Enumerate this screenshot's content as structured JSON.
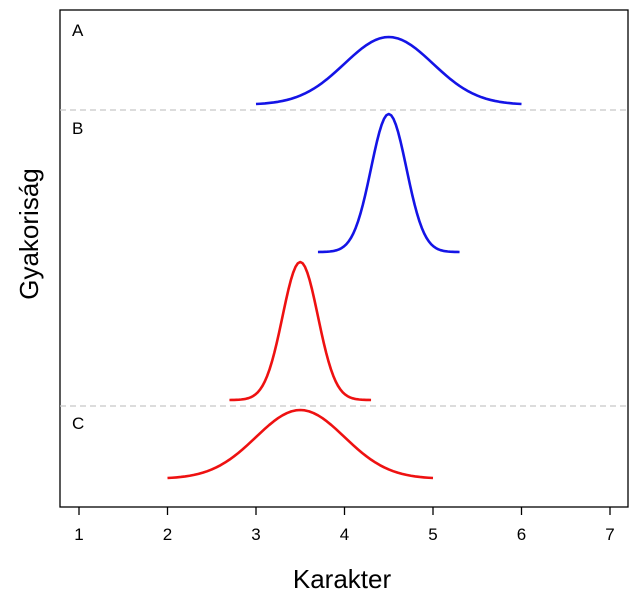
{
  "chart_data": {
    "type": "line",
    "xlabel": "Karakter",
    "ylabel": "Gyakoriság",
    "xlim": [
      0.8,
      7.2
    ],
    "xticks": [
      "1",
      "2",
      "3",
      "4",
      "5",
      "6",
      "7"
    ],
    "grid": false,
    "legend": "none",
    "panel_labels": [
      "A",
      "B",
      "C"
    ],
    "divider_color": "#c8c8c8",
    "series": [
      {
        "panel": "A",
        "color": "#1414e6",
        "mean": 4.5,
        "x_range": [
          3.0,
          6.0
        ],
        "peak_height": 1.0,
        "sd": 0.5
      },
      {
        "panel": "B",
        "color": "#1414e6",
        "mean": 4.5,
        "x_range": [
          3.7,
          5.3
        ],
        "peak_height": 1.0,
        "sd": 0.2
      },
      {
        "panel": "B",
        "color": "#ee1111",
        "mean": 3.5,
        "x_range": [
          2.7,
          4.3
        ],
        "peak_height": 1.0,
        "sd": 0.2
      },
      {
        "panel": "C",
        "color": "#ee1111",
        "mean": 3.5,
        "x_range": [
          2.0,
          5.0
        ],
        "peak_height": 1.0,
        "sd": 0.5
      }
    ]
  }
}
